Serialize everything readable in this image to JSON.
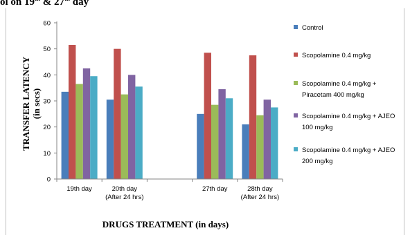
{
  "header": {
    "title_fragment": "ol on 19",
    "title_sup1": "th",
    "title_mid": " & 27",
    "title_sup2": "th",
    "title_end": " day"
  },
  "colors": {
    "Control": "#4a7ebb",
    "Scopolamine": "#c0504d",
    "Piracetam": "#9bbb59",
    "AJEO100": "#8064a2",
    "AJEO200": "#4bacc6"
  },
  "chart_data": {
    "type": "bar",
    "title": "",
    "xlabel": "DRUGS TREATMENT (in days)",
    "ylabel_line1": "TRANSFER LATENCY",
    "ylabel_line2": "(in secs)",
    "ylim": [
      0,
      60
    ],
    "yticks": [
      0,
      10,
      20,
      30,
      40,
      50,
      60
    ],
    "grid": false,
    "legend_position": "right",
    "categories": [
      {
        "line1": "19th day",
        "line2": ""
      },
      {
        "line1": "20th day",
        "line2": "(After 24 hrs)"
      },
      {
        "line1": "",
        "line2": ""
      },
      {
        "line1": "27th day",
        "line2": ""
      },
      {
        "line1": "28th day",
        "line2": "(After 24 hrs)"
      }
    ],
    "series": [
      {
        "name_lines": [
          "Control"
        ],
        "color_key": "Control",
        "values": [
          33.5,
          30.5,
          null,
          25,
          21
        ]
      },
      {
        "name_lines": [
          "Scopolamine 0.4 mg/kg"
        ],
        "color_key": "Scopolamine",
        "values": [
          51.5,
          50,
          null,
          48.5,
          47.5
        ]
      },
      {
        "name_lines": [
          "Scopolamine 0.4 mg/kg +",
          "Piracetam 400 mg/kg"
        ],
        "color_key": "Piracetam",
        "values": [
          36.5,
          32.5,
          null,
          28.5,
          24.5
        ]
      },
      {
        "name_lines": [
          "Scopolamine 0.4 mg/kg + AJEO",
          "100 mg/kg"
        ],
        "color_key": "AJEO100",
        "values": [
          42.5,
          40,
          null,
          34.5,
          30.5
        ]
      },
      {
        "name_lines": [
          "Scopolamine 0.4 mg/kg + AJEO",
          "200 mg/kg"
        ],
        "color_key": "AJEO200",
        "values": [
          39.5,
          35.5,
          null,
          31,
          27.5
        ]
      }
    ]
  }
}
